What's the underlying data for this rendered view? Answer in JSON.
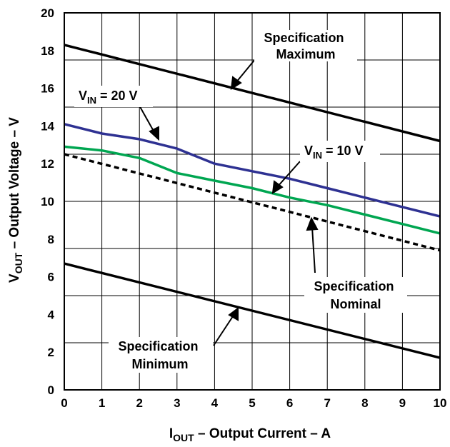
{
  "chart_data": {
    "type": "line",
    "xlim": [
      0,
      10
    ],
    "ylim": [
      0,
      20
    ],
    "xticks": [
      "0",
      "1",
      "2",
      "3",
      "4",
      "5",
      "6",
      "7",
      "8",
      "9",
      "10"
    ],
    "yticks": [
      "0",
      "2",
      "4",
      "6",
      "8",
      "10",
      "12",
      "14",
      "16",
      "18",
      "20"
    ],
    "grid": "on",
    "xlabel": {
      "main": "I",
      "sub": "OUT",
      "rest": " – Output Current – A"
    },
    "ylabel": {
      "main": "V",
      "sub": "OUT",
      "rest": " – Output Voltage – V"
    },
    "series": [
      {
        "key": "spec_max",
        "color": "#000000",
        "dash": "solid",
        "x": [
          0,
          10
        ],
        "y": [
          18.3,
          13.2
        ]
      },
      {
        "key": "vin20",
        "color": "#2e3192",
        "dash": "solid",
        "x": [
          0,
          1,
          2,
          3,
          4,
          5,
          6,
          7,
          8,
          9,
          10
        ],
        "y": [
          14.1,
          13.6,
          13.3,
          12.8,
          12.0,
          11.6,
          11.2,
          10.7,
          10.2,
          9.7,
          9.2
        ]
      },
      {
        "key": "vin10",
        "color": "#00a651",
        "dash": "solid",
        "x": [
          0,
          1,
          2,
          3,
          4,
          5,
          6,
          7,
          8,
          9,
          10
        ],
        "y": [
          12.9,
          12.7,
          12.3,
          11.5,
          11.1,
          10.7,
          10.2,
          9.8,
          9.3,
          8.8,
          8.3
        ]
      },
      {
        "key": "spec_nom",
        "color": "#000000",
        "dash": "dashed",
        "x": [
          0,
          10
        ],
        "y": [
          12.5,
          7.4
        ]
      },
      {
        "key": "spec_min",
        "color": "#000000",
        "dash": "solid",
        "x": [
          0,
          10
        ],
        "y": [
          6.7,
          1.7
        ]
      }
    ],
    "annotations": {
      "spec_max": {
        "lines": [
          "Specification",
          "Maximum"
        ]
      },
      "vin20": {
        "main": "V",
        "sub": "IN",
        "rest": " = 20 V"
      },
      "vin10": {
        "main": "V",
        "sub": "IN",
        "rest": " = 10 V"
      },
      "spec_nom": {
        "lines": [
          "Specification",
          "Nominal"
        ]
      },
      "spec_min": {
        "lines": [
          "Specification",
          "Minimum"
        ]
      }
    }
  }
}
